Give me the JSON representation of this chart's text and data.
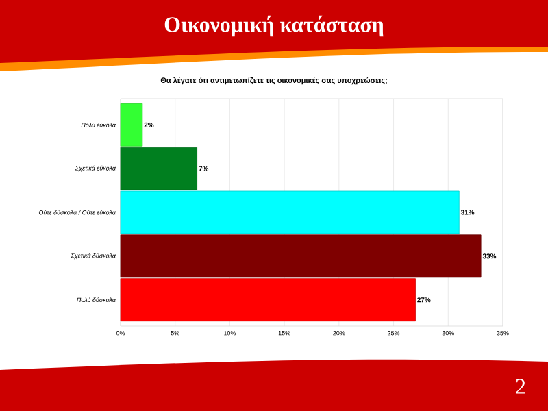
{
  "chart_data": {
    "type": "bar",
    "orientation": "horizontal",
    "title": "Οικονομική κατάσταση",
    "subtitle": "Θα λέγατε ότι αντιμετωπίζετε τις οικονομικές σας υποχρεώσεις;",
    "categories": [
      "Πολύ εύκολα",
      "Σχετικά εύκολα",
      "Ούτε δύσκολα / Ούτε εύκολα",
      "Σχετικά δύσκολα",
      "Πολύ δύσκολα"
    ],
    "values": [
      2,
      7,
      31,
      33,
      27
    ],
    "colors": [
      "#33ff33",
      "#007f1f",
      "#00ffff",
      "#7f0000",
      "#ff0000"
    ],
    "value_labels": [
      "2%",
      "7%",
      "31%",
      "33%",
      "27%"
    ],
    "xlim": [
      0,
      35
    ],
    "xticks": [
      {
        "value": 0,
        "label": "0%"
      },
      {
        "value": 5,
        "label": "5%"
      },
      {
        "value": 10,
        "label": "10%"
      },
      {
        "value": 15,
        "label": "15%"
      },
      {
        "value": 20,
        "label": "20%"
      },
      {
        "value": 25,
        "label": "25%"
      },
      {
        "value": 30,
        "label": "30%"
      },
      {
        "value": 35,
        "label": "35%"
      }
    ],
    "grid": "x",
    "annotations": [
      "2"
    ]
  }
}
